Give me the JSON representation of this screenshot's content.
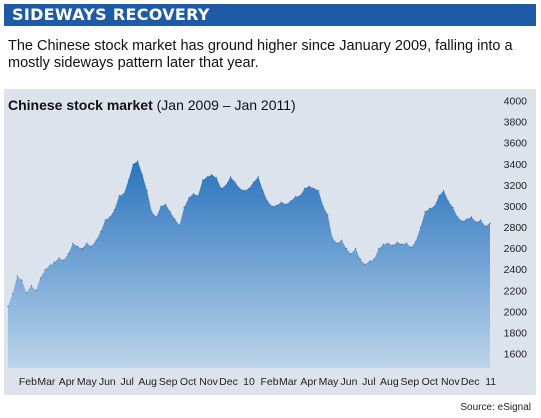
{
  "header": {
    "title": "SIDEWAYS RECOVERY",
    "subtitle": "The Chinese stock market has ground higher since January 2009, falling into a mostly sideways pattern later that year."
  },
  "source": "Source: eSignal",
  "colors": {
    "banner": "#1f5aa6",
    "panel": "#dce3ec",
    "area_top": "#2a73bd",
    "area_bottom": "#bcd5ea"
  },
  "chart_data": {
    "type": "area",
    "title": "Chinese stock market",
    "subtitle": "(Jan 2009 – Jan 2011)",
    "xlabel": "",
    "ylabel": "",
    "ylim": [
      1500,
      4000
    ],
    "yticks": [
      1600,
      1800,
      2000,
      2200,
      2400,
      2600,
      2800,
      3000,
      3200,
      3400,
      3600,
      3800,
      4000
    ],
    "grid": false,
    "x_tick_labels": [
      "Feb",
      "Mar",
      "Apr",
      "May",
      "Jun",
      "Jul",
      "Aug",
      "Sep",
      "Oct",
      "Nov",
      "Dec",
      "10",
      "Feb",
      "Mar",
      "Apr",
      "May",
      "Jun",
      "Jul",
      "Aug",
      "Sep",
      "Oct",
      "Nov",
      "Dec",
      "11"
    ],
    "x": [
      "2009-01-05",
      "2009-01-12",
      "2009-01-19",
      "2009-01-26",
      "2009-02-02",
      "2009-02-09",
      "2009-02-16",
      "2009-02-23",
      "2009-03-02",
      "2009-03-09",
      "2009-03-16",
      "2009-03-23",
      "2009-03-30",
      "2009-04-06",
      "2009-04-13",
      "2009-04-20",
      "2009-04-27",
      "2009-05-04",
      "2009-05-11",
      "2009-05-18",
      "2009-05-25",
      "2009-06-01",
      "2009-06-08",
      "2009-06-15",
      "2009-06-22",
      "2009-06-29",
      "2009-07-06",
      "2009-07-13",
      "2009-07-20",
      "2009-07-27",
      "2009-08-03",
      "2009-08-10",
      "2009-08-17",
      "2009-08-24",
      "2009-08-31",
      "2009-09-07",
      "2009-09-14",
      "2009-09-21",
      "2009-09-28",
      "2009-10-05",
      "2009-10-12",
      "2009-10-19",
      "2009-10-26",
      "2009-11-02",
      "2009-11-09",
      "2009-11-16",
      "2009-11-23",
      "2009-11-30",
      "2009-12-07",
      "2009-12-14",
      "2009-12-21",
      "2009-12-28",
      "2010-01-04",
      "2010-01-11",
      "2010-01-18",
      "2010-01-25",
      "2010-02-01",
      "2010-02-08",
      "2010-02-15",
      "2010-02-22",
      "2010-03-01",
      "2010-03-08",
      "2010-03-15",
      "2010-03-22",
      "2010-03-29",
      "2010-04-05",
      "2010-04-12",
      "2010-04-19",
      "2010-04-26",
      "2010-05-03",
      "2010-05-10",
      "2010-05-17",
      "2010-05-24",
      "2010-05-31",
      "2010-06-07",
      "2010-06-14",
      "2010-06-21",
      "2010-06-28",
      "2010-07-05",
      "2010-07-12",
      "2010-07-19",
      "2010-07-26",
      "2010-08-02",
      "2010-08-09",
      "2010-08-16",
      "2010-08-23",
      "2010-08-30",
      "2010-09-06",
      "2010-09-13",
      "2010-09-20",
      "2010-09-27",
      "2010-10-04",
      "2010-10-11",
      "2010-10-18",
      "2010-10-25",
      "2010-11-01",
      "2010-11-08",
      "2010-11-15",
      "2010-11-22",
      "2010-11-29",
      "2010-12-06",
      "2010-12-13",
      "2010-12-20",
      "2010-12-27",
      "2011-01-03"
    ],
    "series": [
      {
        "values": [
          2050,
          2170,
          2340,
          2300,
          2180,
          2250,
          2200,
          2320,
          2400,
          2440,
          2470,
          2510,
          2490,
          2550,
          2650,
          2620,
          2600,
          2650,
          2620,
          2680,
          2760,
          2870,
          2900,
          2970,
          3100,
          3120,
          3250,
          3400,
          3430,
          3300,
          3150,
          2950,
          2900,
          3000,
          3020,
          2950,
          2880,
          2820,
          2990,
          3080,
          3120,
          3100,
          3250,
          3280,
          3300,
          3270,
          3170,
          3200,
          3280,
          3230,
          3170,
          3150,
          3170,
          3230,
          3280,
          3150,
          3050,
          3000,
          3010,
          3040,
          3020,
          3050,
          3090,
          3100,
          3170,
          3190,
          3170,
          3150,
          3000,
          2920,
          2700,
          2650,
          2680,
          2600,
          2550,
          2600,
          2500,
          2450,
          2480,
          2500,
          2600,
          2640,
          2650,
          2630,
          2660,
          2640,
          2650,
          2610,
          2670,
          2800,
          2950,
          2980,
          3000,
          3100,
          3150,
          3050,
          2990,
          2900,
          2860,
          2880,
          2900,
          2850,
          2870,
          2810,
          2840
        ]
      }
    ]
  }
}
